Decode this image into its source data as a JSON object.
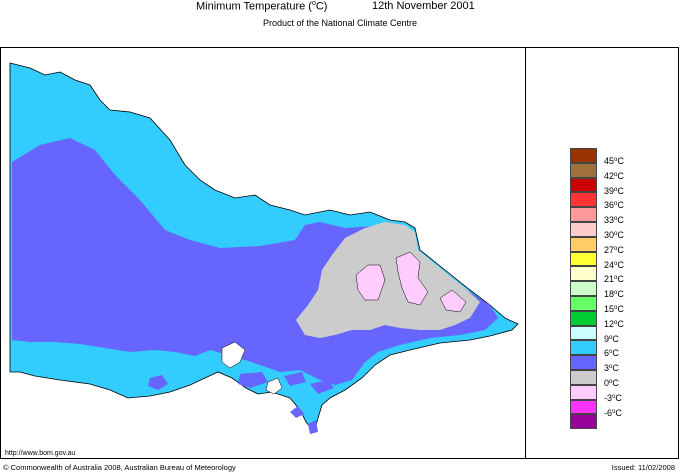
{
  "title": {
    "main_prefix": "Minimum Temperature (",
    "main_degree": "o",
    "main_suffix": "C)",
    "date": "12th November 2001"
  },
  "subtitle": "Product of the National Climate Centre",
  "footer": {
    "url": "http://www.bom.gov.au",
    "copyright": "© Commonwealth of Australia 2008, Australian Bureau of Meteorology",
    "issued": "Issued: 11/02/2008"
  },
  "legend": {
    "degree_symbol": "o",
    "unit": "C",
    "items": [
      {
        "value": "45",
        "color": "#993300"
      },
      {
        "value": "42",
        "color": "#a0703a"
      },
      {
        "value": "39",
        "color": "#cc0000"
      },
      {
        "value": "36",
        "color": "#ff3333"
      },
      {
        "value": "33",
        "color": "#ff9999"
      },
      {
        "value": "30",
        "color": "#ffcccc"
      },
      {
        "value": "27",
        "color": "#ffcc66"
      },
      {
        "value": "24",
        "color": "#ffff33"
      },
      {
        "value": "21",
        "color": "#ffffcc"
      },
      {
        "value": "18",
        "color": "#ccffcc"
      },
      {
        "value": "15",
        "color": "#66ff66"
      },
      {
        "value": "12",
        "color": "#00cc33"
      },
      {
        "value": "9",
        "color": "#ccffff"
      },
      {
        "value": "6",
        "color": "#33ccff"
      },
      {
        "value": "3",
        "color": "#6666ff"
      },
      {
        "value": "0",
        "color": "#cccccc"
      },
      {
        "value": "-3",
        "color": "#ffccff"
      },
      {
        "value": "-6",
        "color": "#ff33ff"
      },
      {
        "value": "",
        "color": "#990099"
      }
    ]
  },
  "map_colors": {
    "band_6_9": "#33ccff",
    "band_3_6": "#6666ff",
    "band_0_3": "#cccccc",
    "band_m3_0": "#ffccff",
    "outline": "#000000"
  }
}
